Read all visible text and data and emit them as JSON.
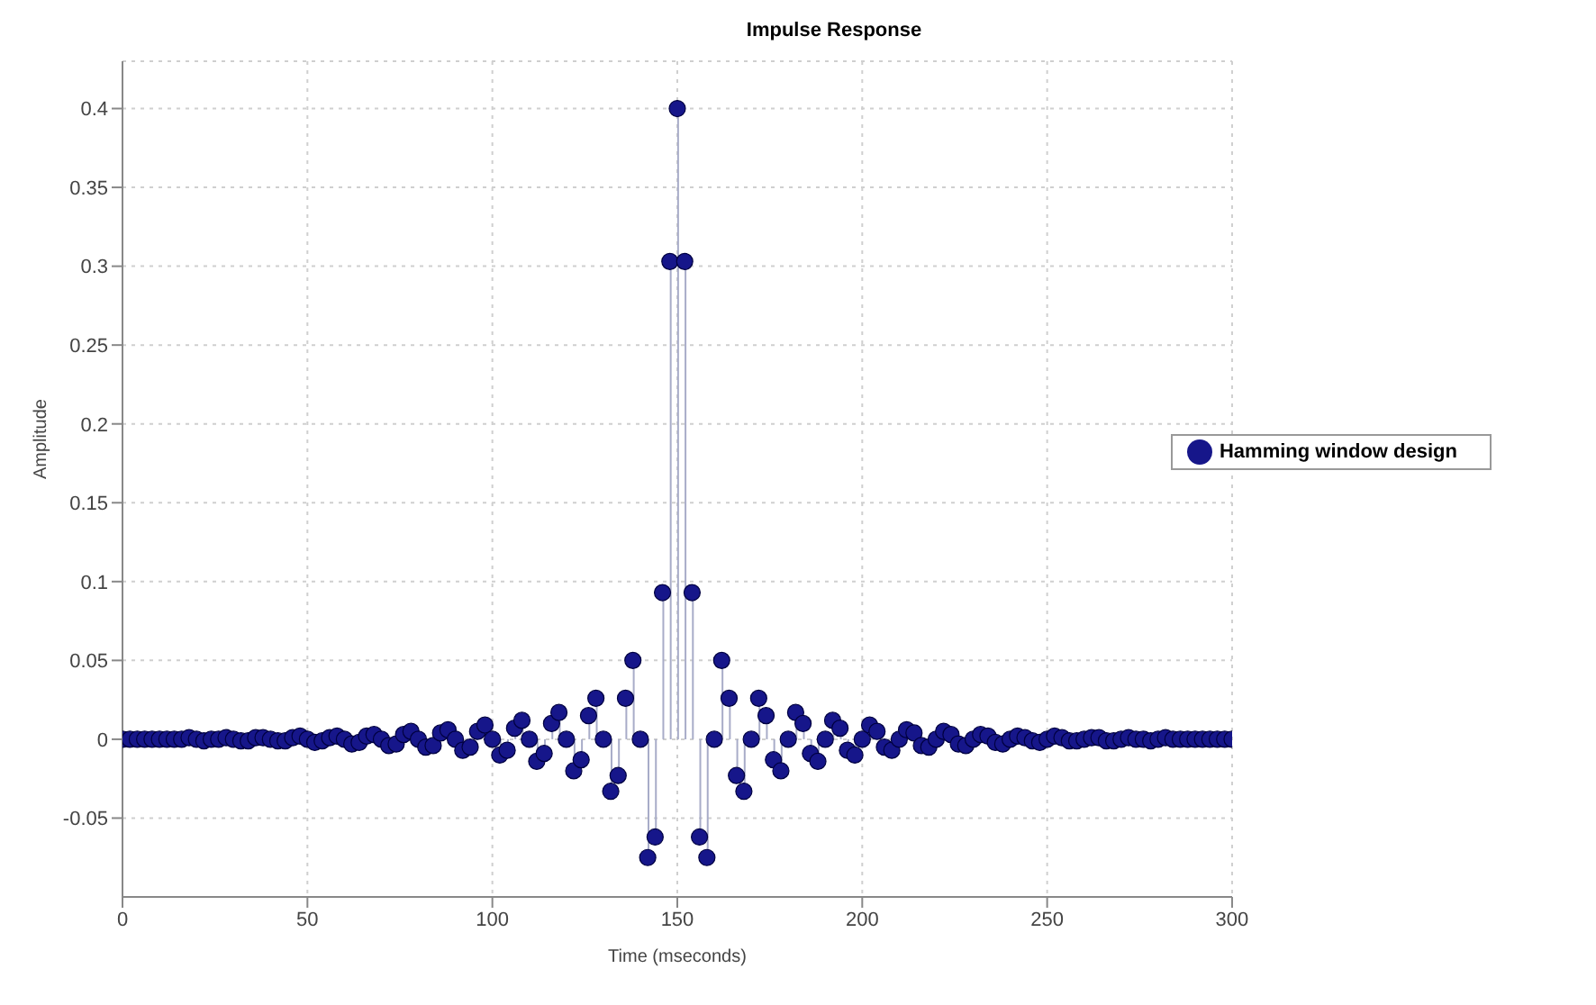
{
  "chart_data": {
    "type": "lollipop",
    "title": "Impulse Response",
    "xlabel": "Time (mseconds)",
    "ylabel": "Amplitude",
    "x": [
      0,
      2,
      4,
      6,
      8,
      10,
      12,
      14,
      16,
      18,
      20,
      22,
      24,
      26,
      28,
      30,
      32,
      34,
      36,
      38,
      40,
      42,
      44,
      46,
      48,
      50,
      52,
      54,
      56,
      58,
      60,
      62,
      64,
      66,
      68,
      70,
      72,
      74,
      76,
      78,
      80,
      82,
      84,
      86,
      88,
      90,
      92,
      94,
      96,
      98,
      100,
      102,
      104,
      106,
      108,
      110,
      112,
      114,
      116,
      118,
      120,
      122,
      124,
      126,
      128,
      130,
      132,
      134,
      136,
      138,
      140,
      142,
      144,
      146,
      148,
      150,
      152,
      154,
      156,
      158,
      160,
      162,
      164,
      166,
      168,
      170,
      172,
      174,
      176,
      178,
      180,
      182,
      184,
      186,
      188,
      190,
      192,
      194,
      196,
      198,
      200,
      202,
      204,
      206,
      208,
      210,
      212,
      214,
      216,
      218,
      220,
      222,
      224,
      226,
      228,
      230,
      232,
      234,
      236,
      238,
      240,
      242,
      244,
      246,
      248,
      250,
      252,
      254,
      256,
      258,
      260,
      262,
      264,
      266,
      268,
      270,
      272,
      274,
      276,
      278,
      280,
      282,
      284,
      286,
      288,
      290,
      292,
      294,
      296,
      298,
      300
    ],
    "series": [
      {
        "name": "Hamming window design",
        "color": "#16168a",
        "values": [
          0,
          0,
          0,
          0,
          0,
          0,
          0,
          0,
          0,
          0.001,
          0,
          -0.001,
          0,
          0,
          0.001,
          0,
          -0.001,
          -0.001,
          0.001,
          0.001,
          0,
          -0.001,
          -0.001,
          0.001,
          0.002,
          0,
          -0.002,
          -0.001,
          0.001,
          0.002,
          0,
          -0.003,
          -0.002,
          0.002,
          0.003,
          0,
          -0.004,
          -0.003,
          0.003,
          0.005,
          0,
          -0.005,
          -0.004,
          0.004,
          0.006,
          0,
          -0.007,
          -0.005,
          0.005,
          0.009,
          0,
          -0.01,
          -0.007,
          0.007,
          0.012,
          0,
          -0.014,
          -0.009,
          0.01,
          0.017,
          0,
          -0.02,
          -0.013,
          0.015,
          0.026,
          0,
          -0.033,
          -0.023,
          0.026,
          0.05,
          0,
          -0.075,
          -0.062,
          0.093,
          0.303,
          0.4,
          0.303,
          0.093,
          -0.062,
          -0.075,
          0,
          0.05,
          0.026,
          -0.023,
          -0.033,
          0,
          0.026,
          0.015,
          -0.013,
          -0.02,
          0,
          0.017,
          0.01,
          -0.009,
          -0.014,
          0,
          0.012,
          0.007,
          -0.007,
          -0.01,
          0,
          0.009,
          0.005,
          -0.005,
          -0.007,
          0,
          0.006,
          0.004,
          -0.004,
          -0.005,
          0,
          0.005,
          0.003,
          -0.003,
          -0.004,
          0,
          0.003,
          0.002,
          -0.002,
          -0.003,
          0,
          0.002,
          0.001,
          -0.001,
          -0.002,
          0,
          0.002,
          0.001,
          -0.001,
          -0.001,
          0,
          0.001,
          0.001,
          -0.001,
          -0.001,
          0,
          0.001,
          0,
          0,
          -0.001,
          0,
          0.001,
          0,
          0,
          0,
          0,
          0,
          0,
          0,
          0,
          0
        ]
      }
    ],
    "xlim": [
      0,
      300
    ],
    "xticks": [
      0,
      50,
      100,
      150,
      200,
      250,
      300
    ],
    "ylim": [
      -0.1,
      0.43
    ],
    "yticks": [
      -0.05,
      0,
      0.05,
      0.1,
      0.15,
      0.2,
      0.25,
      0.3,
      0.35,
      0.4
    ],
    "grid": true,
    "legend": "right",
    "marker": "circle"
  }
}
